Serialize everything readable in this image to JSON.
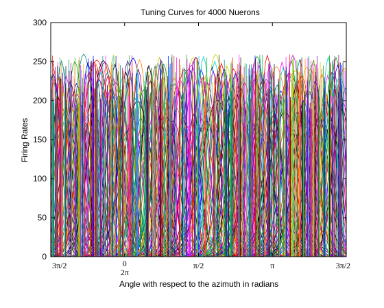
{
  "chart_data": {
    "type": "line",
    "title": "Tuning Curves for 4000 Nuerons",
    "xlabel": "Angle with respect to the azimuth in radians",
    "ylabel": "Firing Rates",
    "ylim": [
      0,
      300
    ],
    "yticks": [
      0,
      50,
      100,
      150,
      200,
      250,
      300
    ],
    "xticks": [
      {
        "label": "3π/2",
        "sublabel": ""
      },
      {
        "label": "0",
        "sublabel": "2π"
      },
      {
        "label": "π/2",
        "sublabel": ""
      },
      {
        "label": "π",
        "sublabel": ""
      },
      {
        "label": "3π/2",
        "sublabel": ""
      }
    ],
    "xlim": [
      -1.5708,
      4.7124
    ],
    "neuron_count": 4000,
    "peak_rate": 260,
    "grid": false,
    "legend": "none",
    "colors": [
      "#ff0000",
      "#00aa00",
      "#0000ff",
      "#ff00ff",
      "#00cccc",
      "#cccc00",
      "#000000",
      "#800080",
      "#ff8000",
      "#008080"
    ]
  }
}
